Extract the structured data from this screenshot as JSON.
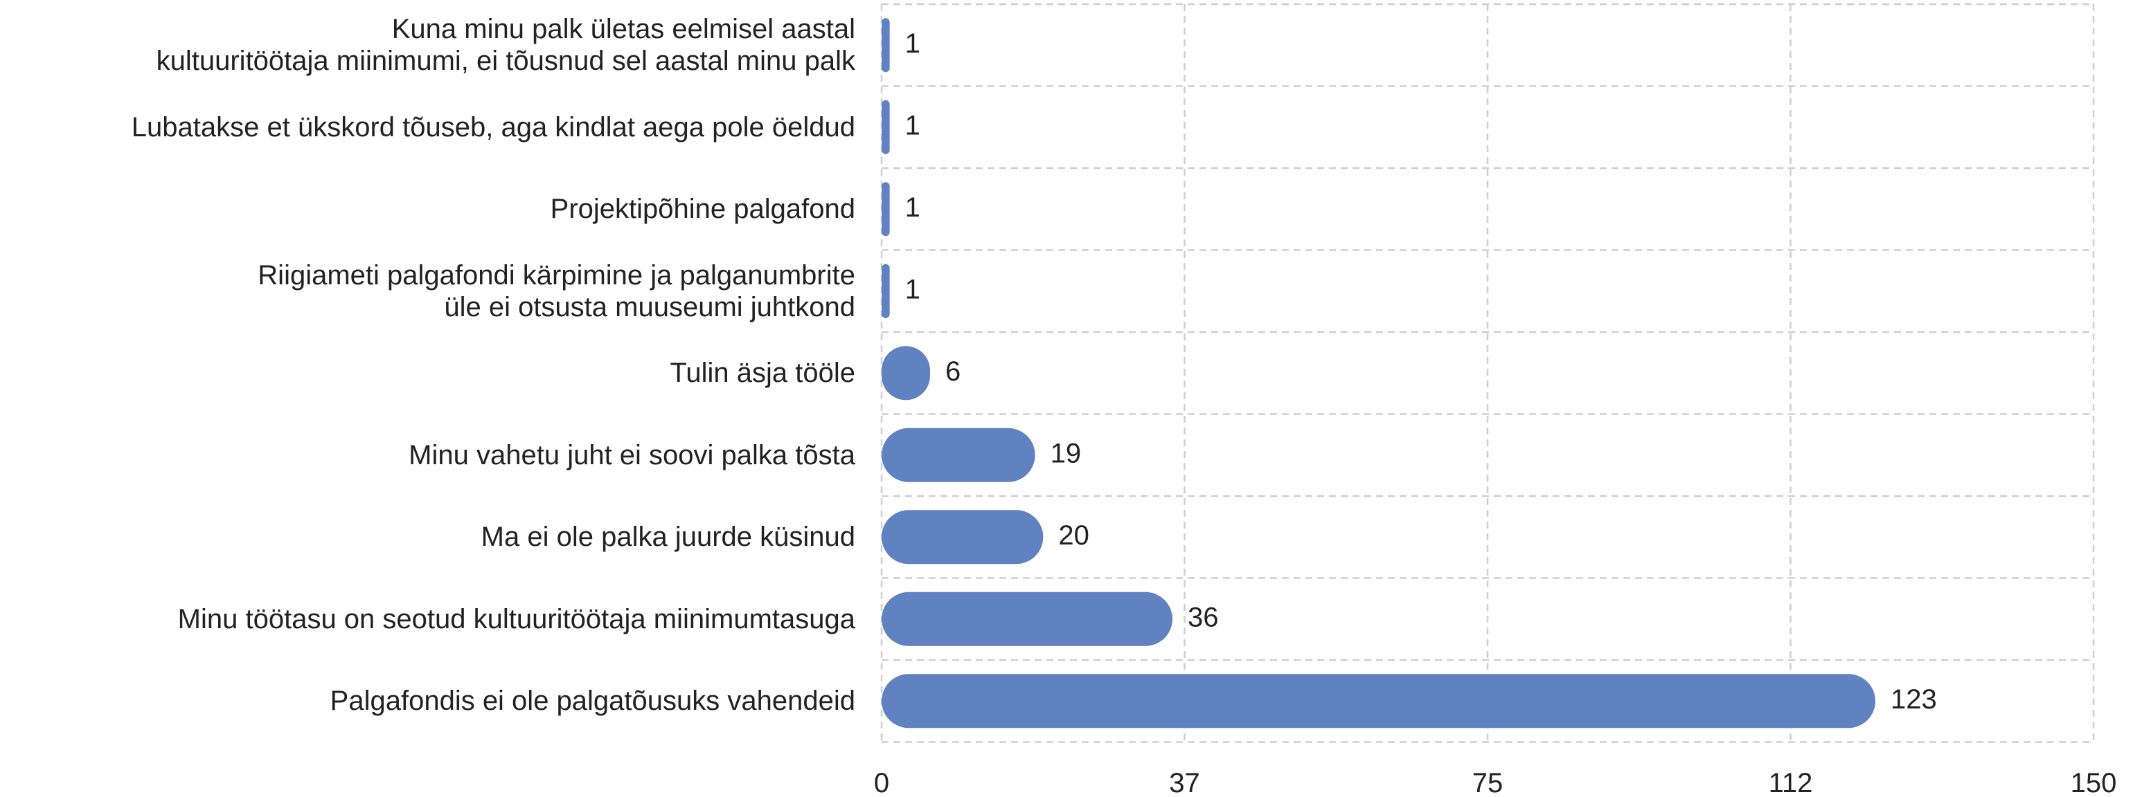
{
  "chart_data": {
    "type": "bar",
    "orientation": "horizontal",
    "categories": [
      "Kuna minu palk ületas eelmisel aastal\nkultuuritöötaja miinimumi, ei tõusnud sel aastal minu palk",
      "Lubatakse et ükskord tõuseb, aga kindlat aega pole öeldud",
      "Projektipõhine palgafond",
      "Riigiameti palgafondi kärpimine ja palganumbrite\nüle ei otsusta muuseumi juhtkond",
      "Tulin äsja tööle",
      "Minu vahetu juht ei soovi palka tõsta",
      "Ma ei ole palka juurde küsinud",
      "Minu töötasu on seotud kultuuritöötaja miinimumtasuga",
      "Palgafondis ei ole palgatõusuks vahendeid"
    ],
    "values": [
      1,
      1,
      1,
      1,
      6,
      19,
      20,
      36,
      123
    ],
    "color": "#6082c0",
    "xlim": [
      0,
      150
    ],
    "xticks": [
      0,
      {
        "value": 37.5,
        "label": "37"
      },
      75,
      {
        "value": 112.5,
        "label": "112"
      },
      150
    ],
    "grid": true
  }
}
